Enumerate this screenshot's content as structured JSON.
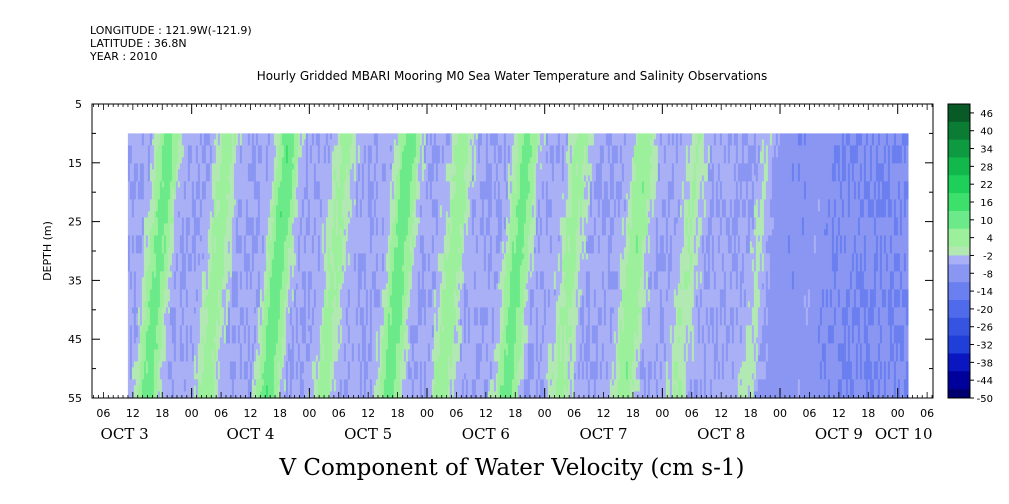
{
  "header": {
    "longitude": "LONGITUDE : 121.9W(-121.9)",
    "latitude": "LATITUDE : 36.8N",
    "year": "YEAR : 2010"
  },
  "chart_data": {
    "type": "heatmap",
    "title": "Hourly Gridded MBARI Mooring M0 Sea Water Temperature and Salinity Observations",
    "xlabel": "V Component of Water Velocity (cm s-1)",
    "ylabel": "DEPTH (m)",
    "ylim": [
      55,
      5
    ],
    "y_ticks": [
      "5",
      "15",
      "25",
      "35",
      "45",
      "55"
    ],
    "x_hour_ticks": [
      "06",
      "12",
      "18",
      "00",
      "06",
      "12",
      "18",
      "00",
      "06",
      "12",
      "18",
      "00",
      "06",
      "12",
      "18",
      "00",
      "06",
      "12",
      "18",
      "00",
      "06",
      "12",
      "18",
      "00",
      "06",
      "12",
      "18",
      "00",
      "06",
      "12",
      "18",
      "00"
    ],
    "x_day_labels": [
      "OCT  3",
      "OCT  4",
      "OCT  5",
      "OCT  6",
      "OCT  7",
      "OCT  8",
      "OCT  9",
      "OCT 10"
    ],
    "data_start": "2010-10-03 11:00",
    "data_end": "2010-10-10 02:00",
    "data_depth_top": 10,
    "data_depth_bottom": 55,
    "colorbar": {
      "labels": [
        "46",
        "40",
        "34",
        "28",
        "22",
        "16",
        "10",
        "4",
        "-2",
        "-8",
        "-14",
        "-20",
        "-26",
        "-32",
        "-38",
        "-44",
        "-50"
      ],
      "min": -50,
      "max": 49,
      "step": 3
    },
    "color_scale": {
      "-50": "#00006e",
      "-44": "#00009a",
      "-38": "#0a16c0",
      "-32": "#1f3fd8",
      "-26": "#3654e2",
      "-20": "#4f6aea",
      "-14": "#6a7ff0",
      "-8": "#8a97f2",
      "-2": "#a9b0f6",
      "1": "#b2e8b2",
      "4": "#9cf09c",
      "10": "#6cea8a",
      "16": "#3ee06c",
      "22": "#1ed05a",
      "28": "#12b84c",
      "34": "#0e9a40",
      "40": "#0b7c34",
      "46": "#085a26"
    },
    "green_bands_day_start": [
      3.8,
      4.3,
      4.82,
      5.3,
      5.85,
      6.3,
      6.85,
      7.3,
      7.85,
      8.3,
      8.9,
      9.35
    ],
    "green_band_strength": [
      14,
      8,
      16,
      7,
      15,
      8,
      14,
      7,
      10,
      5,
      5,
      4
    ],
    "band_slope_days_per_depth_range": -0.12
  }
}
